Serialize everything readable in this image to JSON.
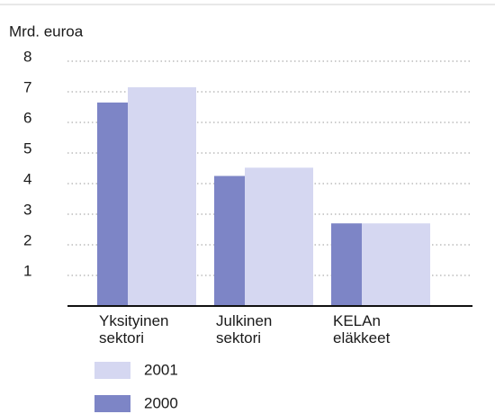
{
  "chart_data": {
    "type": "bar",
    "y_label": "Mrd. euroa",
    "categories": [
      "Yksityinen sektori",
      "Julkinen sektori",
      "KELAn eläkkeet"
    ],
    "series": [
      {
        "name": "2000",
        "color": "#7d85c6",
        "values": [
          6.65,
          4.25,
          2.7
        ]
      },
      {
        "name": "2001",
        "color": "#d5d7f1",
        "values": [
          7.15,
          4.52,
          2.7
        ]
      }
    ],
    "ylim": [
      0,
      8
    ],
    "yticks": [
      1,
      2,
      3,
      4,
      5,
      6,
      7,
      8
    ],
    "grid": true
  }
}
